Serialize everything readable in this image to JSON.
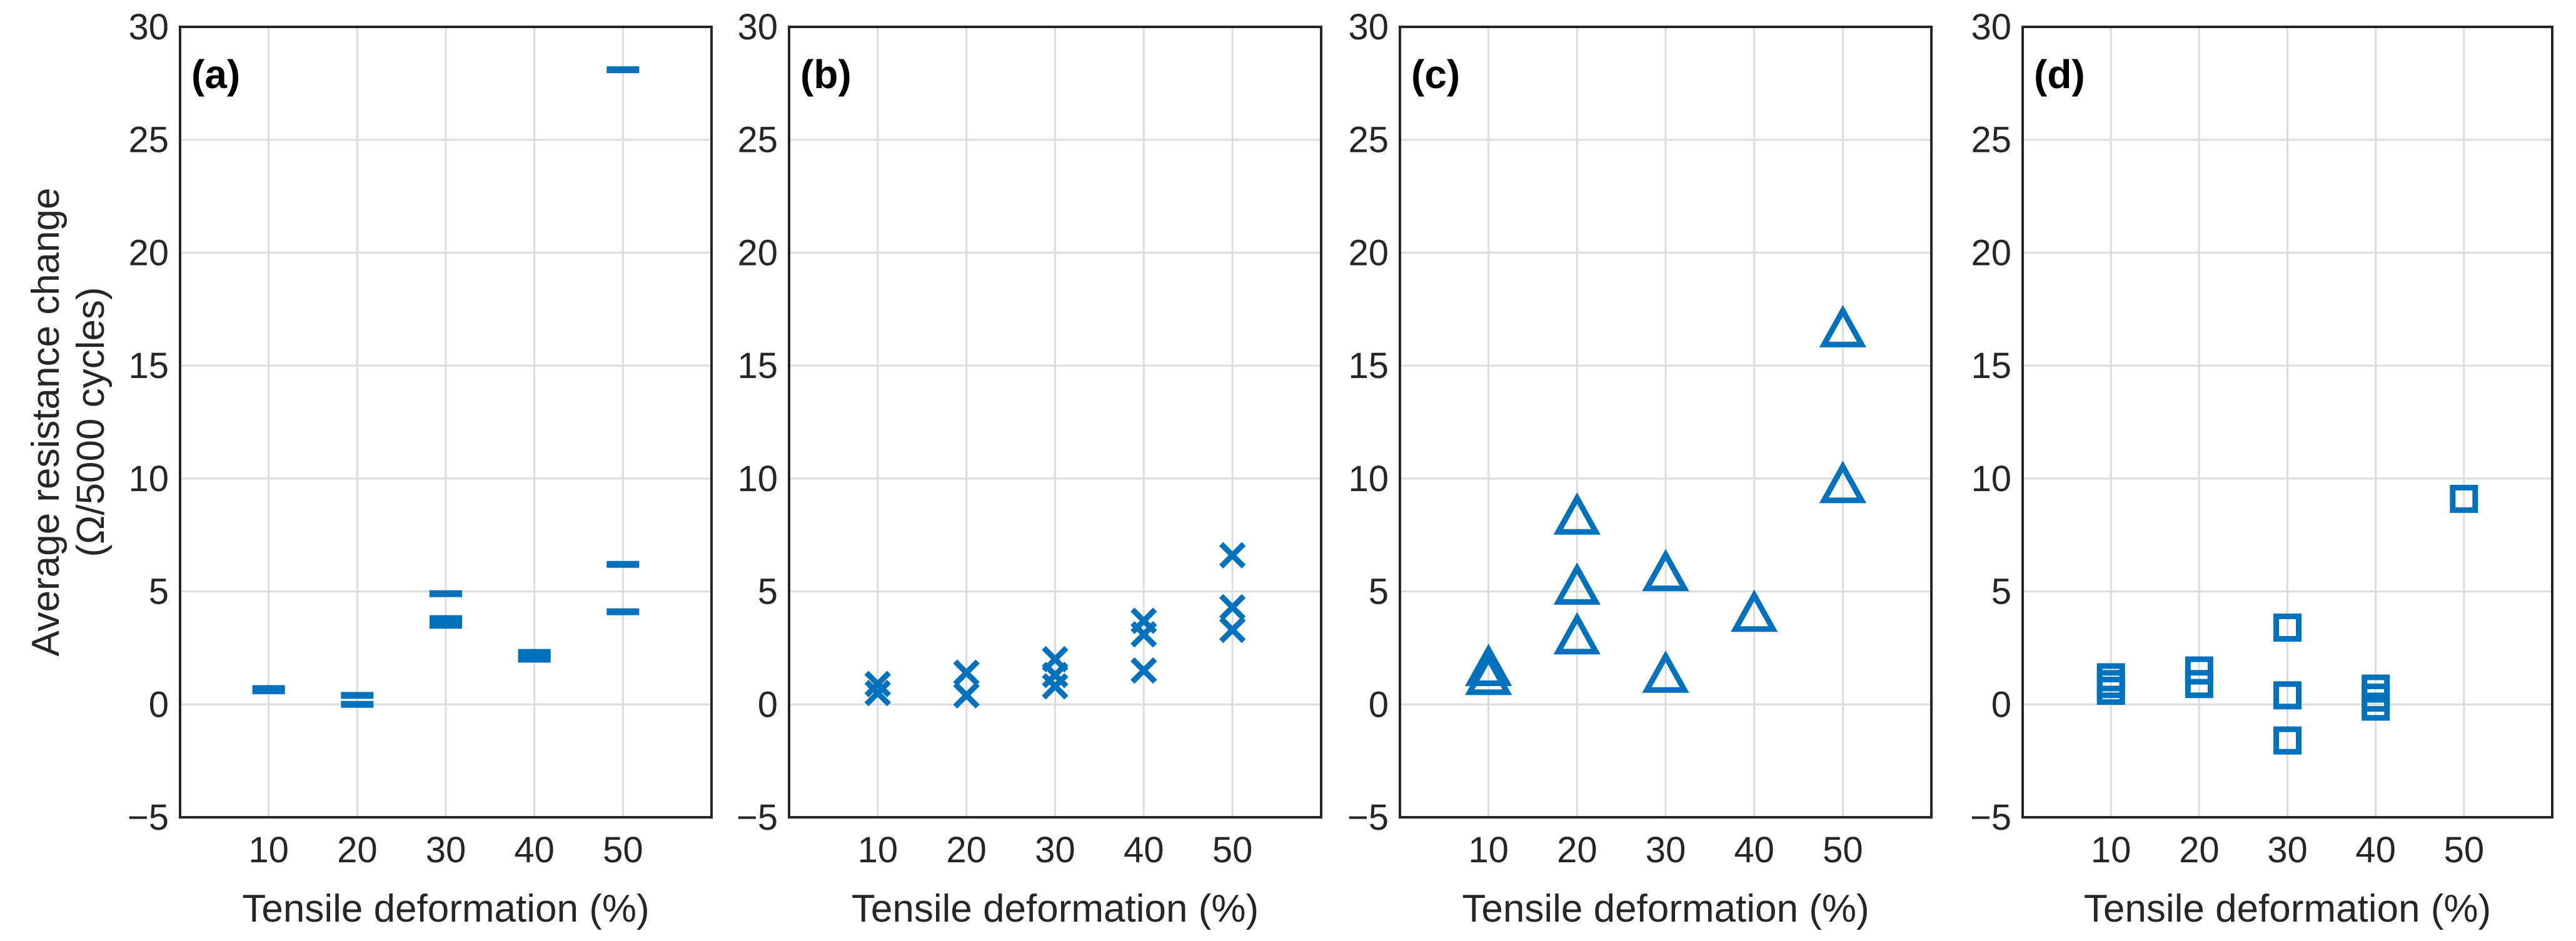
{
  "colors": {
    "marker": "#0072BD",
    "text": "#262626",
    "grid": "#dcdcdc"
  },
  "chart_data": [
    {
      "type": "scatter",
      "panel_label": "(a)",
      "marker": "hline",
      "xlabel": "Tensile deformation (%)",
      "ylabel_line1": "Average resistance change",
      "ylabel_line2": "(Ω/5000 cycles)",
      "xlim": [
        0,
        60
      ],
      "ylim": [
        -5,
        30
      ],
      "xticks": [
        "10",
        "20",
        "30",
        "40",
        "50"
      ],
      "yticks": [
        "−5",
        "0",
        "5",
        "10",
        "15",
        "20",
        "25",
        "30"
      ],
      "grid": true,
      "points": [
        [
          10,
          0.7
        ],
        [
          10,
          0.6
        ],
        [
          20,
          0.4
        ],
        [
          20,
          0.0
        ],
        [
          30,
          4.9
        ],
        [
          30,
          3.8
        ],
        [
          30,
          3.5
        ],
        [
          40,
          2.3
        ],
        [
          40,
          2.1
        ],
        [
          40,
          2.0
        ],
        [
          50,
          28.1
        ],
        [
          50,
          6.2
        ],
        [
          50,
          4.1
        ]
      ]
    },
    {
      "type": "scatter",
      "panel_label": "(b)",
      "marker": "x",
      "xlabel": "Tensile deformation (%)",
      "xlim": [
        0,
        60
      ],
      "ylim": [
        -5,
        30
      ],
      "xticks": [
        "10",
        "20",
        "30",
        "40",
        "50"
      ],
      "yticks": [
        "−5",
        "0",
        "5",
        "10",
        "15",
        "20",
        "25",
        "30"
      ],
      "grid": true,
      "points": [
        [
          10,
          0.9
        ],
        [
          10,
          0.5
        ],
        [
          20,
          1.4
        ],
        [
          20,
          0.4
        ],
        [
          30,
          2.0
        ],
        [
          30,
          1.3
        ],
        [
          30,
          0.8
        ],
        [
          40,
          3.7
        ],
        [
          40,
          3.1
        ],
        [
          40,
          1.5
        ],
        [
          50,
          6.6
        ],
        [
          50,
          4.3
        ],
        [
          50,
          3.3
        ]
      ]
    },
    {
      "type": "scatter",
      "panel_label": "(c)",
      "marker": "triangle",
      "xlabel": "Tensile deformation (%)",
      "xlim": [
        0,
        60
      ],
      "ylim": [
        -5,
        30
      ],
      "xticks": [
        "10",
        "20",
        "30",
        "40",
        "50"
      ],
      "yticks": [
        "−5",
        "0",
        "5",
        "10",
        "15",
        "20",
        "25",
        "30"
      ],
      "grid": true,
      "points": [
        [
          10,
          1.6
        ],
        [
          10,
          1.2
        ],
        [
          20,
          8.3
        ],
        [
          20,
          5.2
        ],
        [
          20,
          3.0
        ],
        [
          30,
          5.8
        ],
        [
          30,
          1.3
        ],
        [
          40,
          4.0
        ],
        [
          50,
          16.6
        ],
        [
          50,
          9.7
        ]
      ]
    },
    {
      "type": "scatter",
      "panel_label": "(d)",
      "marker": "square",
      "xlabel": "Tensile deformation (%)",
      "xlim": [
        0,
        60
      ],
      "ylim": [
        -5,
        30
      ],
      "xticks": [
        "10",
        "20",
        "30",
        "40",
        "50"
      ],
      "yticks": [
        "−5",
        "0",
        "5",
        "10",
        "15",
        "20",
        "25",
        "30"
      ],
      "grid": true,
      "points": [
        [
          10,
          1.2
        ],
        [
          10,
          0.9
        ],
        [
          10,
          0.6
        ],
        [
          20,
          1.5
        ],
        [
          20,
          0.9
        ],
        [
          30,
          3.4
        ],
        [
          30,
          0.4
        ],
        [
          30,
          -1.6
        ],
        [
          40,
          0.7
        ],
        [
          40,
          0.3
        ],
        [
          40,
          -0.1
        ],
        [
          50,
          9.1
        ]
      ]
    }
  ]
}
